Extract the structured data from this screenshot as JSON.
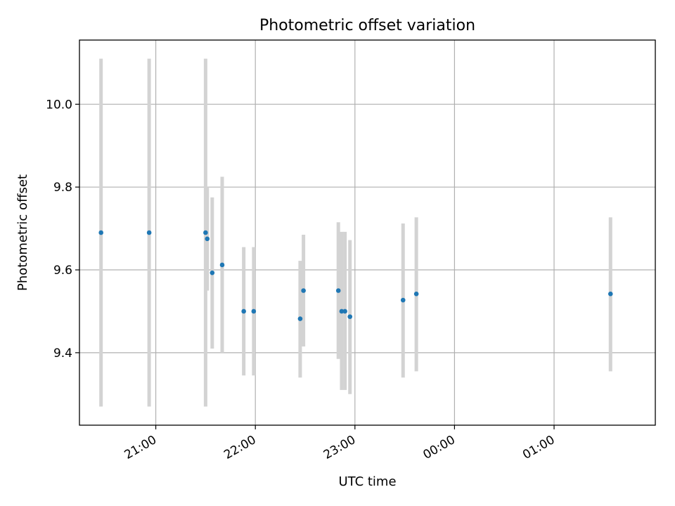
{
  "chart_data": {
    "type": "scatter",
    "title": "Photometric offset variation",
    "xlabel": "UTC time",
    "ylabel": "Photometric offset",
    "grid": true,
    "x_axis_kind": "time",
    "xlim": [
      "20:14",
      "02:01"
    ],
    "ylim": [
      9.225,
      10.155
    ],
    "x_ticks": [
      "21:00",
      "22:00",
      "23:00",
      "00:00",
      "01:00"
    ],
    "y_ticks": [
      "9.4",
      "9.6",
      "9.8",
      "10.0"
    ],
    "series": [
      {
        "marker_color": "#1f77b4",
        "errorbar_color": "#d3d3d3",
        "points": [
          {
            "x": "20:27",
            "y": 9.69,
            "y_low": 9.27,
            "y_high": 10.11
          },
          {
            "x": "20:56",
            "y": 9.69,
            "y_low": 9.27,
            "y_high": 10.11
          },
          {
            "x": "21:30",
            "y": 9.69,
            "y_low": 9.27,
            "y_high": 10.11
          },
          {
            "x": "21:31",
            "y": 9.675,
            "y_low": 9.55,
            "y_high": 9.8
          },
          {
            "x": "21:34",
            "y": 9.593,
            "y_low": 9.41,
            "y_high": 9.775
          },
          {
            "x": "21:40",
            "y": 9.612,
            "y_low": 9.4,
            "y_high": 9.825
          },
          {
            "x": "21:53",
            "y": 9.5,
            "y_low": 9.345,
            "y_high": 9.655
          },
          {
            "x": "21:59",
            "y": 9.5,
            "y_low": 9.345,
            "y_high": 9.655
          },
          {
            "x": "22:27",
            "y": 9.482,
            "y_low": 9.34,
            "y_high": 9.622
          },
          {
            "x": "22:29",
            "y": 9.55,
            "y_low": 9.415,
            "y_high": 9.685
          },
          {
            "x": "22:50",
            "y": 9.55,
            "y_low": 9.385,
            "y_high": 9.715
          },
          {
            "x": "22:52",
            "y": 9.5,
            "y_low": 9.31,
            "y_high": 9.692
          },
          {
            "x": "22:54",
            "y": 9.5,
            "y_low": 9.31,
            "y_high": 9.692
          },
          {
            "x": "22:57",
            "y": 9.487,
            "y_low": 9.3,
            "y_high": 9.672
          },
          {
            "x": "23:29",
            "y": 9.527,
            "y_low": 9.34,
            "y_high": 9.712
          },
          {
            "x": "23:37",
            "y": 9.542,
            "y_low": 9.355,
            "y_high": 9.727
          },
          {
            "x": "01:34",
            "y": 9.542,
            "y_low": 9.355,
            "y_high": 9.727
          }
        ]
      }
    ]
  }
}
